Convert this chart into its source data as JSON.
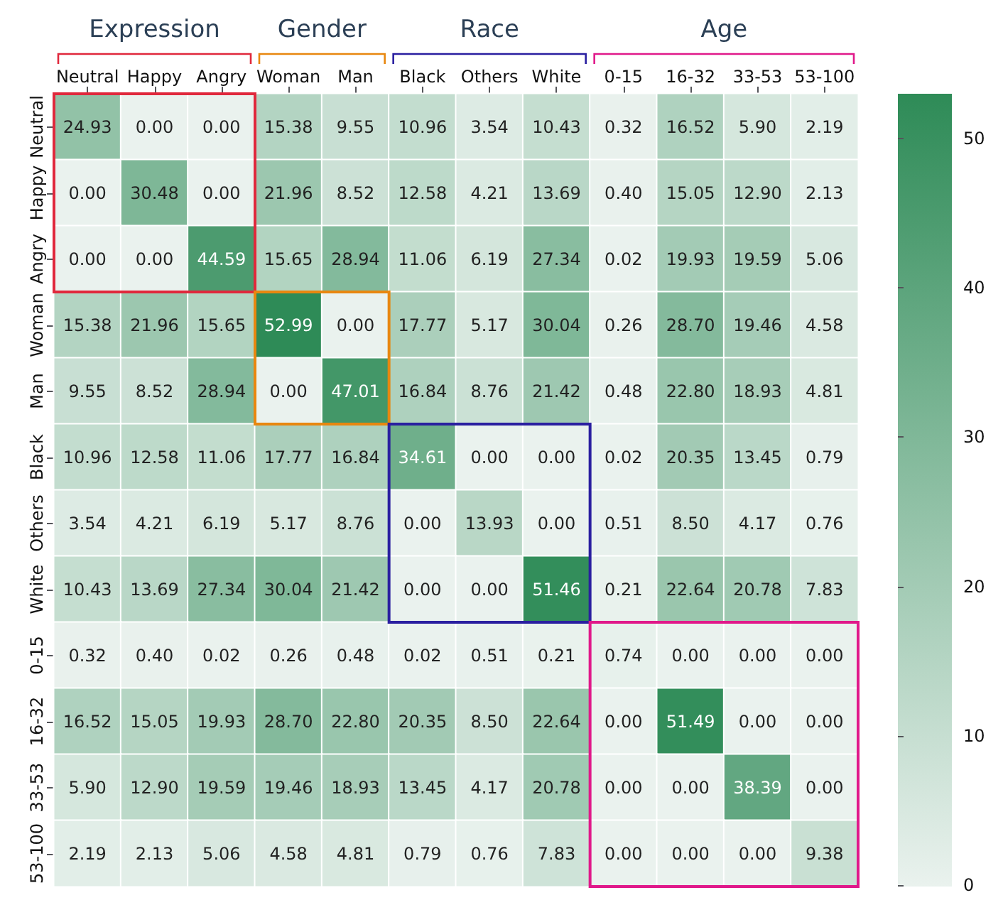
{
  "chart_data": {
    "type": "heatmap",
    "categories": [
      "Neutral",
      "Happy",
      "Angry",
      "Woman",
      "Man",
      "Black",
      "Others",
      "White",
      "0-15",
      "16-32",
      "33-53",
      "53-100"
    ],
    "y_categories": [
      "Neutral",
      "Happy",
      "Angry",
      "Woman",
      "Man",
      "Black",
      "Others",
      "White",
      "0-15",
      "16-32",
      "33-53",
      "53-100"
    ],
    "annotations": [
      "Expression",
      "Gender",
      "Race",
      "Age"
    ],
    "colors": [
      "#eaf2ee",
      "#2e8b57"
    ],
    "clim": [
      0,
      53
    ],
    "cticks": [
      0,
      10,
      20,
      30,
      40,
      50
    ],
    "cells": [
      [
        24.93,
        0,
        0,
        15.38,
        9.55,
        10.96,
        3.54,
        10.43,
        0.32,
        16.52,
        5.9,
        2.19
      ],
      [
        0,
        30.48,
        0,
        21.96,
        8.52,
        12.58,
        4.21,
        13.69,
        0.4,
        15.05,
        12.9,
        2.13
      ],
      [
        0,
        0,
        44.59,
        15.65,
        28.94,
        11.06,
        6.19,
        27.34,
        0.02,
        19.93,
        19.59,
        5.06
      ],
      [
        15.38,
        21.96,
        15.65,
        52.99,
        0,
        17.77,
        5.17,
        30.04,
        0.26,
        28.7,
        19.46,
        4.58
      ],
      [
        9.55,
        8.52,
        28.94,
        0,
        47.01,
        16.84,
        8.76,
        21.42,
        0.48,
        22.8,
        18.93,
        4.81
      ],
      [
        10.96,
        12.58,
        11.06,
        17.77,
        16.84,
        34.61,
        0,
        0,
        0.02,
        20.35,
        13.45,
        0.79
      ],
      [
        3.54,
        4.21,
        6.19,
        5.17,
        8.76,
        0,
        13.93,
        0,
        0.51,
        8.5,
        4.17,
        0.76
      ],
      [
        10.43,
        13.69,
        27.34,
        30.04,
        21.42,
        0,
        0,
        51.46,
        0.21,
        22.64,
        20.78,
        7.83
      ],
      [
        0.32,
        0.4,
        0.02,
        0.26,
        0.48,
        0.02,
        0.51,
        0.21,
        0.74,
        0,
        0,
        0
      ],
      [
        16.52,
        15.05,
        19.93,
        28.7,
        22.8,
        20.35,
        8.5,
        22.64,
        0,
        51.49,
        0,
        0
      ],
      [
        5.9,
        12.9,
        19.59,
        19.46,
        18.93,
        13.45,
        4.17,
        20.78,
        0,
        0,
        38.39,
        0
      ],
      [
        2.19,
        2.13,
        5.06,
        4.58,
        4.81,
        0.79,
        0.76,
        7.83,
        0,
        0,
        0,
        9.38
      ]
    ],
    "cell_labels": [
      [
        "24.93",
        "0.00",
        "0.00",
        "15.38",
        "9.55",
        "10.96",
        "3.54",
        "10.43",
        "0.32",
        "16.52",
        "5.90",
        "2.19"
      ],
      [
        "0.00",
        "30.48",
        "0.00",
        "21.96",
        "8.52",
        "12.58",
        "4.21",
        "13.69",
        "0.40",
        "15.05",
        "12.90",
        "2.13"
      ],
      [
        "0.00",
        "0.00",
        "44.59",
        "15.65",
        "28.94",
        "11.06",
        "6.19",
        "27.34",
        "0.02",
        "19.93",
        "19.59",
        "5.06"
      ],
      [
        "15.38",
        "21.96",
        "15.65",
        "52.99",
        "0.00",
        "17.77",
        "5.17",
        "30.04",
        "0.26",
        "28.70",
        "19.46",
        "4.58"
      ],
      [
        "9.55",
        "8.52",
        "28.94",
        "0.00",
        "47.01",
        "16.84",
        "8.76",
        "21.42",
        "0.48",
        "22.80",
        "18.93",
        "4.81"
      ],
      [
        "10.96",
        "12.58",
        "11.06",
        "17.77",
        "16.84",
        "34.61",
        "0.00",
        "0.00",
        "0.02",
        "20.35",
        "13.45",
        "0.79"
      ],
      [
        "3.54",
        "4.21",
        "6.19",
        "5.17",
        "8.76",
        "0.00",
        "13.93",
        "0.00",
        "0.51",
        "8.50",
        "4.17",
        "0.76"
      ],
      [
        "10.43",
        "13.69",
        "27.34",
        "30.04",
        "21.42",
        "0.00",
        "0.00",
        "51.46",
        "0.21",
        "22.64",
        "20.78",
        "7.83"
      ],
      [
        "0.32",
        "0.40",
        "0.02",
        "0.26",
        "0.48",
        "0.02",
        "0.51",
        "0.21",
        "0.74",
        "0.00",
        "0.00",
        "0.00"
      ],
      [
        "16.52",
        "15.05",
        "19.93",
        "28.70",
        "22.80",
        "20.35",
        "8.50",
        "22.64",
        "0.00",
        "51.49",
        "0.00",
        "0.00"
      ],
      [
        "5.90",
        "12.90",
        "19.59",
        "19.46",
        "18.93",
        "13.45",
        "4.17",
        "20.78",
        "0.00",
        "0.00",
        "38.39",
        "0.00"
      ],
      [
        "2.19",
        "2.13",
        "5.06",
        "4.58",
        "4.81",
        "0.79",
        "0.76",
        "7.83",
        "0.00",
        "0.00",
        "0.00",
        "9.38"
      ]
    ]
  }
}
